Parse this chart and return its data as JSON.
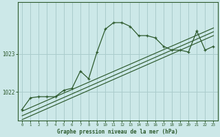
{
  "title": "Graphe pression niveau de la mer (hPa)",
  "bg_color": "#cce8e8",
  "grid_color": "#aacccc",
  "line_color": "#2d5a2d",
  "x_ticks": [
    0,
    1,
    2,
    3,
    4,
    5,
    6,
    7,
    8,
    9,
    10,
    11,
    12,
    13,
    14,
    15,
    16,
    17,
    18,
    19,
    20,
    21,
    22,
    23
  ],
  "ylim": [
    1021.25,
    1024.35
  ],
  "yticks": [
    1022,
    1023
  ],
  "main_series": {
    "x": [
      0,
      1,
      2,
      3,
      4,
      5,
      6,
      7,
      8,
      9,
      10,
      11,
      12,
      13,
      14,
      15,
      16,
      17,
      18,
      19,
      20,
      21,
      22,
      23
    ],
    "y": [
      1021.55,
      1021.85,
      1021.88,
      1021.88,
      1021.88,
      1022.05,
      1022.1,
      1022.55,
      1022.35,
      1023.05,
      1023.65,
      1023.82,
      1023.82,
      1023.72,
      1023.48,
      1023.48,
      1023.42,
      1023.2,
      1023.1,
      1023.1,
      1023.05,
      1023.6,
      1023.1,
      1023.2
    ]
  },
  "smooth1": {
    "x": [
      0,
      23
    ],
    "y": [
      1021.28,
      1023.48
    ]
  },
  "smooth2": {
    "x": [
      0,
      23
    ],
    "y": [
      1021.38,
      1023.58
    ]
  },
  "smooth3": {
    "x": [
      0,
      23
    ],
    "y": [
      1021.5,
      1023.68
    ]
  }
}
